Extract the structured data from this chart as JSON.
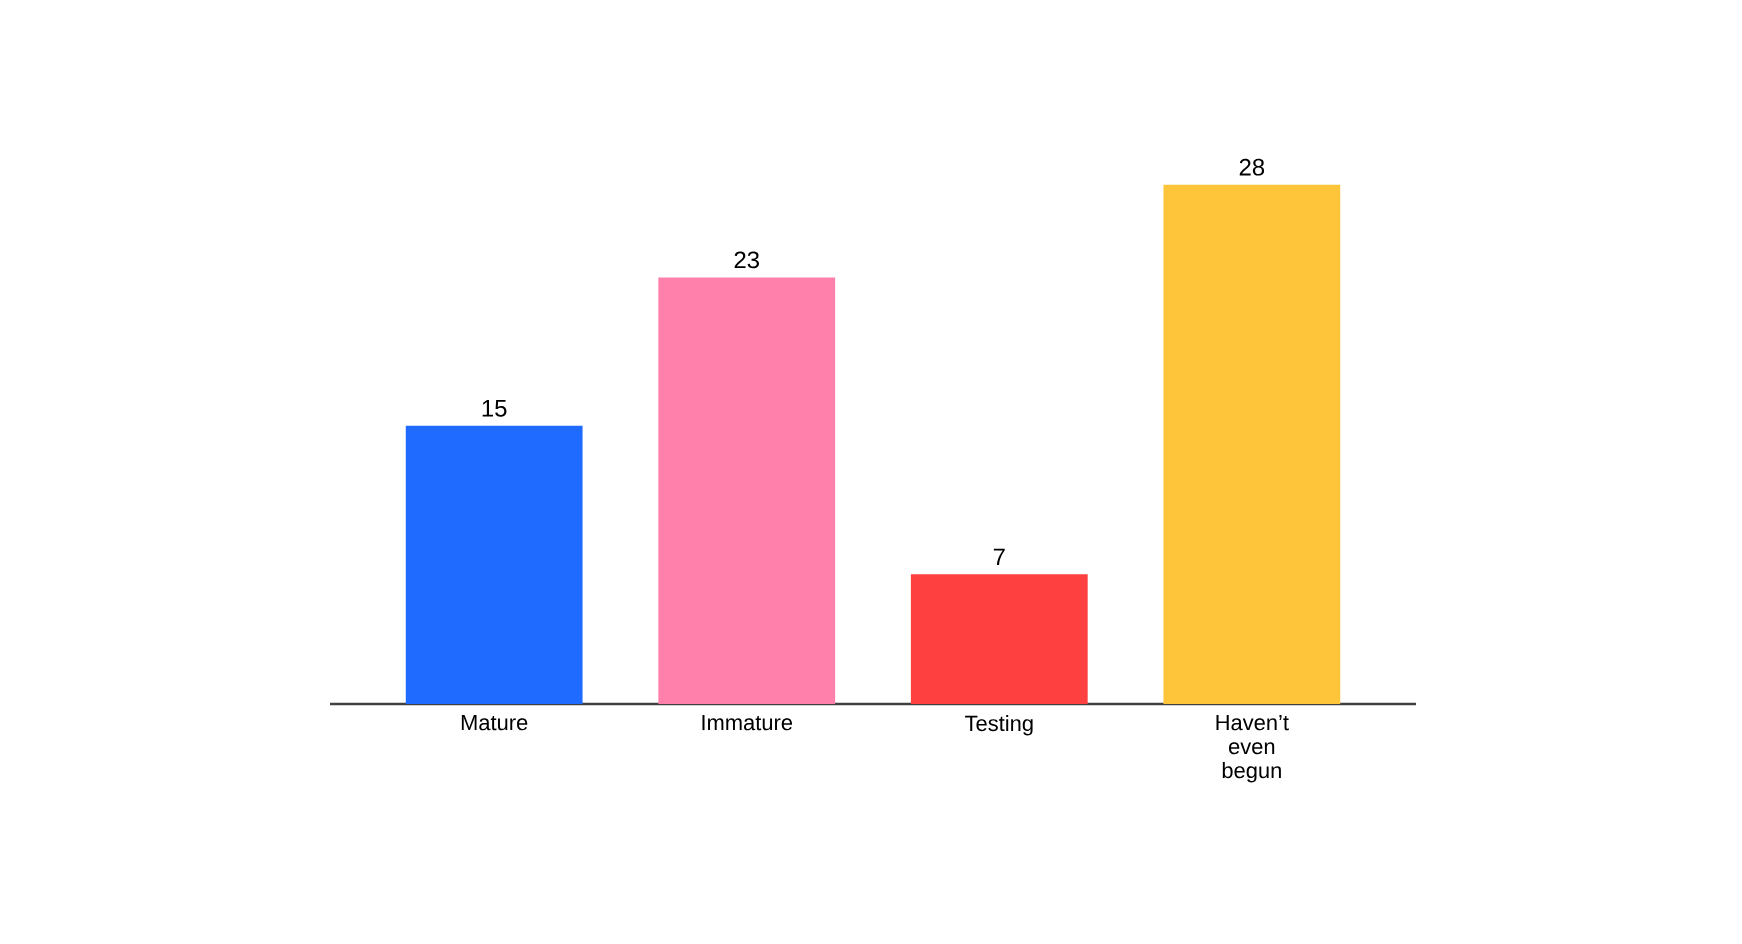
{
  "chart_data": {
    "type": "bar",
    "categories": [
      "Mature",
      "Immature",
      "Testing",
      "Haven’t even begun"
    ],
    "values": [
      15,
      23,
      7,
      28
    ],
    "colors": [
      "#1f6bff",
      "#ff80aa",
      "#ff4040",
      "#ffc53a"
    ],
    "data_labels": true
  }
}
